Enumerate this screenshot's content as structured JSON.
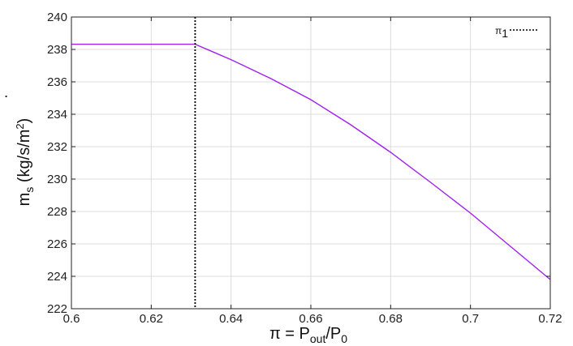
{
  "chart_data": {
    "type": "line",
    "xlabel": {
      "main": "π = P",
      "sub1": "out",
      "mid": "/P",
      "sub2": "0"
    },
    "ylabel": {
      "dot": "˙",
      "main": "m",
      "sub": "s",
      "unit_pre": " (kg/s/m",
      "sup": "2",
      "unit_post": ")"
    },
    "xlim": [
      0.6,
      0.72
    ],
    "ylim": [
      222,
      240
    ],
    "x_ticks": [
      0.6,
      0.62,
      0.64,
      0.66,
      0.68,
      0.7,
      0.72
    ],
    "x_tick_labels": [
      "0.6",
      "0.62",
      "0.64",
      "0.66",
      "0.68",
      "0.7",
      "0.72"
    ],
    "y_ticks": [
      222,
      224,
      226,
      228,
      230,
      232,
      234,
      236,
      238,
      240
    ],
    "y_tick_labels": [
      "222",
      "224",
      "226",
      "228",
      "230",
      "232",
      "234",
      "236",
      "238",
      "240"
    ],
    "grid": true,
    "legend_position": "top-right",
    "series": [
      {
        "color": "#a020f0",
        "x": [
          0.6,
          0.61,
          0.62,
          0.631,
          0.64,
          0.65,
          0.66,
          0.67,
          0.68,
          0.69,
          0.7,
          0.71,
          0.72
        ],
        "y": [
          238.32,
          238.32,
          238.32,
          238.32,
          237.37,
          236.2,
          234.9,
          233.35,
          231.65,
          229.8,
          227.9,
          225.85,
          223.8
        ]
      }
    ],
    "vlines": [
      {
        "name": "π",
        "name_sub": "1",
        "x": 0.631,
        "style": "dotted",
        "color": "#000000"
      }
    ]
  }
}
